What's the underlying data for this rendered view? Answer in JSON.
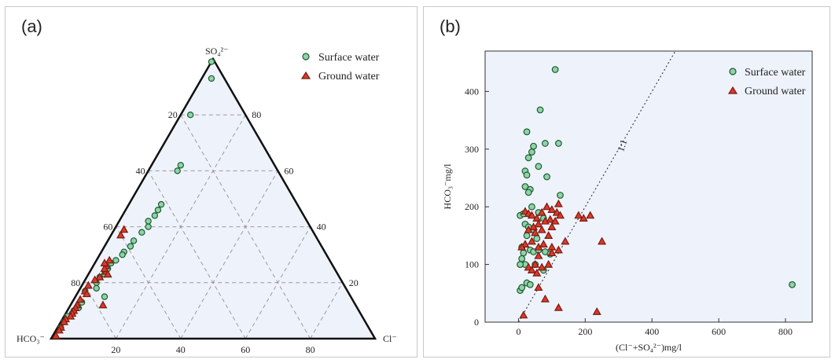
{
  "colors": {
    "surface_fill": "#8fd3a6",
    "surface_stroke": "#1d5a32",
    "ground_fill": "#d93a2b",
    "ground_stroke": "#7a1a10",
    "plot_bg": "#eef3fb",
    "grid": "#9a9a9a"
  },
  "chart_data": [
    {
      "type": "scatter",
      "subtype": "ternary",
      "panel_label": "(a)",
      "vertices": {
        "top": "SO₄²⁻",
        "left": "HCO₃⁻",
        "right": "Cl⁻"
      },
      "tick_values": [
        20,
        40,
        60,
        80
      ],
      "grid": true,
      "legend_position": "top-right",
      "series": [
        {
          "name": "Surface water",
          "marker": "circle",
          "points_so4_cl": [
            [
              99,
              0
            ],
            [
              93,
              3
            ],
            [
              80,
              3
            ],
            [
              62,
              9
            ],
            [
              60,
              9
            ],
            [
              48,
              10
            ],
            [
              46,
              10
            ],
            [
              44,
              10
            ],
            [
              42,
              9
            ],
            [
              40,
              10
            ],
            [
              38,
              9
            ],
            [
              35,
              8
            ],
            [
              33,
              8
            ],
            [
              31,
              7
            ],
            [
              30,
              7
            ],
            [
              28,
              6
            ],
            [
              27,
              5
            ],
            [
              25,
              5
            ],
            [
              23,
              5
            ],
            [
              22,
              4
            ],
            [
              20,
              4
            ],
            [
              18,
              5
            ],
            [
              15,
              9
            ],
            [
              13,
              3
            ],
            [
              11,
              3
            ],
            [
              10,
              2
            ],
            [
              9,
              2
            ],
            [
              8,
              1
            ],
            [
              6,
              1
            ],
            [
              4,
              1
            ],
            [
              17,
              2
            ]
          ]
        },
        {
          "name": "Ground water",
          "marker": "triangle",
          "points_so4_cl": [
            [
              39,
              3
            ],
            [
              37,
              3
            ],
            [
              28,
              4
            ],
            [
              26,
              4
            ],
            [
              24,
              5
            ],
            [
              22,
              4
            ],
            [
              21,
              3
            ],
            [
              19,
              2
            ],
            [
              17,
              2
            ],
            [
              16,
              3
            ],
            [
              14,
              2
            ],
            [
              12,
              2
            ],
            [
              11,
              2
            ],
            [
              10,
              2
            ],
            [
              9,
              2
            ],
            [
              8,
              2
            ],
            [
              7,
              1
            ],
            [
              6,
              1
            ],
            [
              4,
              1
            ],
            [
              3,
              1
            ],
            [
              1,
              1
            ],
            [
              12,
              10
            ],
            [
              25,
              4
            ],
            [
              23,
              6
            ],
            [
              27,
              3
            ]
          ]
        }
      ]
    },
    {
      "type": "scatter",
      "panel_label": "(b)",
      "xlabel": "(Cl⁻+SO₄²⁻)mg/l",
      "ylabel": "HCO₃⁻mg/l",
      "xlim": [
        -100,
        880
      ],
      "ylim": [
        0,
        470
      ],
      "xticks": [
        0,
        200,
        400,
        600,
        800
      ],
      "yticks": [
        0,
        100,
        200,
        300,
        400
      ],
      "reference_line_label": "1:1",
      "grid": false,
      "legend_position": "top-right",
      "series": [
        {
          "name": "Surface water",
          "marker": "circle",
          "points": [
            [
              110,
              438
            ],
            [
              65,
              368
            ],
            [
              25,
              330
            ],
            [
              80,
              310
            ],
            [
              120,
              310
            ],
            [
              45,
              305
            ],
            [
              40,
              295
            ],
            [
              30,
              285
            ],
            [
              60,
              270
            ],
            [
              20,
              262
            ],
            [
              25,
              255
            ],
            [
              85,
              252
            ],
            [
              20,
              235
            ],
            [
              35,
              230
            ],
            [
              30,
              225
            ],
            [
              125,
              220
            ],
            [
              40,
              200
            ],
            [
              5,
              185
            ],
            [
              15,
              188
            ],
            [
              60,
              190
            ],
            [
              75,
              180
            ],
            [
              20,
              170
            ],
            [
              30,
              165
            ],
            [
              45,
              160
            ],
            [
              25,
              150
            ],
            [
              55,
              145
            ],
            [
              10,
              130
            ],
            [
              35,
              125
            ],
            [
              15,
              120
            ],
            [
              45,
              122
            ],
            [
              60,
              125
            ],
            [
              80,
              122
            ],
            [
              95,
              118
            ],
            [
              10,
              110
            ],
            [
              20,
              100
            ],
            [
              5,
              100
            ],
            [
              50,
              100
            ],
            [
              75,
              90
            ],
            [
              25,
              68
            ],
            [
              35,
              65
            ],
            [
              5,
              55
            ],
            [
              10,
              60
            ],
            [
              820,
              65
            ]
          ]
        },
        {
          "name": "Ground water",
          "marker": "triangle",
          "points": [
            [
              20,
              192
            ],
            [
              30,
              188
            ],
            [
              40,
              185
            ],
            [
              55,
              180
            ],
            [
              70,
              190
            ],
            [
              85,
              200
            ],
            [
              100,
              195
            ],
            [
              115,
              190
            ],
            [
              125,
              185
            ],
            [
              120,
              205
            ],
            [
              95,
              178
            ],
            [
              80,
              175
            ],
            [
              60,
              170
            ],
            [
              45,
              165
            ],
            [
              30,
              160
            ],
            [
              70,
              160
            ],
            [
              100,
              165
            ],
            [
              110,
              175
            ],
            [
              90,
              150
            ],
            [
              50,
              155
            ],
            [
              40,
              140
            ],
            [
              20,
              135
            ],
            [
              10,
              130
            ],
            [
              60,
              130
            ],
            [
              75,
              135
            ],
            [
              100,
              130
            ],
            [
              120,
              125
            ],
            [
              140,
              140
            ],
            [
              60,
              115
            ],
            [
              100,
              120
            ],
            [
              30,
              95
            ],
            [
              40,
              90
            ],
            [
              55,
              85
            ],
            [
              70,
              95
            ],
            [
              90,
              100
            ],
            [
              180,
              185
            ],
            [
              195,
              180
            ],
            [
              215,
              185
            ],
            [
              250,
              140
            ],
            [
              60,
              60
            ],
            [
              80,
              40
            ],
            [
              120,
              25
            ],
            [
              235,
              18
            ],
            [
              15,
              12
            ],
            [
              50,
              100
            ]
          ]
        }
      ]
    }
  ]
}
